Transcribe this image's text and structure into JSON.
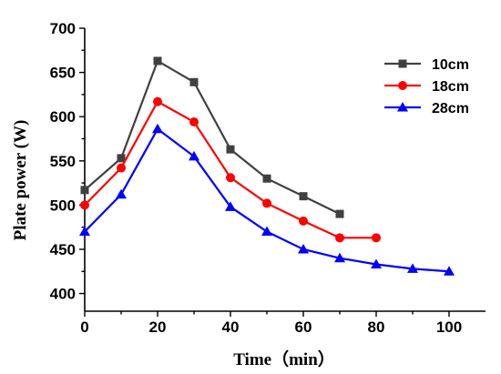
{
  "chart_data": {
    "type": "line",
    "xlabel": "Time（min）",
    "ylabel": "Plate power (W)",
    "xlim": [
      0,
      110
    ],
    "ylim": [
      380,
      700
    ],
    "xticks": [
      "0",
      "20",
      "40",
      "60",
      "80",
      "100"
    ],
    "yticks": [
      "400",
      "450",
      "500",
      "550",
      "600",
      "650",
      "700"
    ],
    "legend_position": "top-right",
    "grid": false,
    "series": [
      {
        "name": "10cm",
        "color": "#404040",
        "marker": "square",
        "x": [
          0,
          10,
          20,
          30,
          40,
          50,
          60,
          70
        ],
        "y": [
          517,
          553,
          663,
          639,
          563,
          530,
          510,
          490
        ]
      },
      {
        "name": "18cm",
        "color": "#ff0000",
        "marker": "circle",
        "x": [
          0,
          10,
          20,
          30,
          40,
          50,
          60,
          70,
          80
        ],
        "y": [
          500,
          542,
          617,
          594,
          531,
          502,
          482,
          463,
          463
        ]
      },
      {
        "name": "28cm",
        "color": "#0000ff",
        "marker": "triangle",
        "x": [
          0,
          10,
          20,
          30,
          40,
          50,
          60,
          70,
          80,
          90,
          100
        ],
        "y": [
          470,
          512,
          586,
          555,
          498,
          470,
          450,
          440,
          433,
          428,
          425
        ]
      }
    ]
  }
}
